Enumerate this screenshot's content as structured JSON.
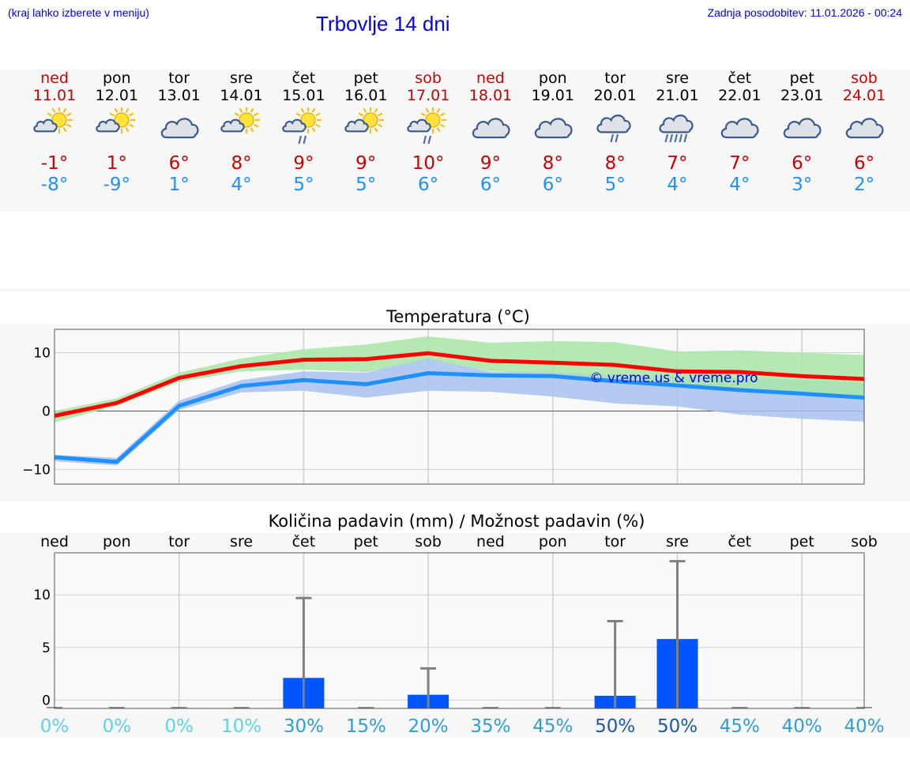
{
  "header": {
    "menu_hint": "(kraj lahko izberete v meniju)",
    "title": "Trbovlje 14 dni",
    "updated": "Zadnja posodobitev: 11.01.2026 - 00:24"
  },
  "forecast": [
    {
      "day": "ned",
      "date": "11.01",
      "icon": "partly-sunny-icon",
      "tmax": "-1°",
      "tmin": "-8°",
      "weekend": true
    },
    {
      "day": "pon",
      "date": "12.01",
      "icon": "partly-sunny-icon",
      "tmax": "1°",
      "tmin": "-9°",
      "weekend": false
    },
    {
      "day": "tor",
      "date": "13.01",
      "icon": "cloudy-icon",
      "tmax": "6°",
      "tmin": "1°",
      "weekend": false
    },
    {
      "day": "sre",
      "date": "14.01",
      "icon": "partly-sunny-icon",
      "tmax": "8°",
      "tmin": "4°",
      "weekend": false
    },
    {
      "day": "čet",
      "date": "15.01",
      "icon": "sun-cloud-rain-icon",
      "tmax": "9°",
      "tmin": "5°",
      "weekend": false
    },
    {
      "day": "pet",
      "date": "16.01",
      "icon": "partly-sunny-icon",
      "tmax": "9°",
      "tmin": "5°",
      "weekend": false
    },
    {
      "day": "sob",
      "date": "17.01",
      "icon": "sun-cloud-rain-icon",
      "tmax": "10°",
      "tmin": "6°",
      "weekend": true
    },
    {
      "day": "ned",
      "date": "18.01",
      "icon": "cloudy-icon",
      "tmax": "9°",
      "tmin": "6°",
      "weekend": true
    },
    {
      "day": "pon",
      "date": "19.01",
      "icon": "cloudy-icon",
      "tmax": "8°",
      "tmin": "6°",
      "weekend": false
    },
    {
      "day": "tor",
      "date": "20.01",
      "icon": "cloud-rain-icon",
      "tmax": "8°",
      "tmin": "5°",
      "weekend": false
    },
    {
      "day": "sre",
      "date": "21.01",
      "icon": "cloud-heavy-rain-icon",
      "tmax": "7°",
      "tmin": "4°",
      "weekend": false
    },
    {
      "day": "čet",
      "date": "22.01",
      "icon": "cloudy-icon",
      "tmax": "7°",
      "tmin": "4°",
      "weekend": false
    },
    {
      "day": "pet",
      "date": "23.01",
      "icon": "cloudy-icon",
      "tmax": "6°",
      "tmin": "3°",
      "weekend": false
    },
    {
      "day": "sob",
      "date": "24.01",
      "icon": "cloudy-icon",
      "tmax": "6°",
      "tmin": "2°",
      "weekend": true
    }
  ],
  "colors": {
    "max_line": "#ff0000",
    "min_line": "#1e90ff",
    "max_band": "#a8e6a8",
    "min_band": "#a9c2f0",
    "overlap_band": "#7cc4b0",
    "precip_bar": "#0055ff",
    "error_bar": "#808080"
  },
  "chart_data": [
    {
      "type": "line",
      "title": "Temperatura (°C)",
      "watermark": "© vreme.us & vreme.pro",
      "ylim": [
        -12.5,
        14
      ],
      "yticks": [
        -10,
        0,
        10
      ],
      "ytick_labels": [
        "−10",
        "0",
        "10"
      ],
      "x": [
        0,
        1,
        2,
        3,
        4,
        5,
        6,
        7,
        8,
        9,
        10,
        11,
        12,
        13
      ],
      "series": [
        {
          "name": "max",
          "values": [
            -0.8,
            1.4,
            5.7,
            7.7,
            8.8,
            8.9,
            9.9,
            8.6,
            8.3,
            7.9,
            6.8,
            6.7,
            6.0,
            5.5
          ],
          "band_low": [
            -1.9,
            0.9,
            5.0,
            6.8,
            7.1,
            6.7,
            8.9,
            6.8,
            6.5,
            5.6,
            4.5,
            3.6,
            2.7,
            1.9
          ],
          "band_high": [
            0,
            2.2,
            6.6,
            9.0,
            10.6,
            11.4,
            12.8,
            11.7,
            12.0,
            11.8,
            10.2,
            10.4,
            10.0,
            9.6
          ]
        },
        {
          "name": "min",
          "values": [
            -7.9,
            -8.7,
            0.9,
            4.3,
            5.3,
            4.6,
            6.5,
            6.1,
            6.0,
            5.1,
            4.4,
            3.6,
            3.0,
            2.3
          ],
          "band_low": [
            -8.6,
            -9.3,
            0.2,
            3.2,
            3.5,
            2.3,
            3.5,
            3.3,
            2.5,
            1.3,
            0.8,
            -0.6,
            -1.3,
            -1.8
          ],
          "band_high": [
            -7.5,
            -8.0,
            1.8,
            5.3,
            6.8,
            6.6,
            9.2,
            6.7,
            6.7,
            6.2,
            6.0,
            5.6,
            5.3,
            4.8
          ]
        }
      ]
    },
    {
      "type": "bar",
      "title": "Količina padavin (mm) / Možnost padavin (%)",
      "ylim": [
        -0.8,
        14
      ],
      "yticks": [
        0,
        5,
        10
      ],
      "ytick_labels": [
        "0",
        "5",
        "10"
      ],
      "categories": [
        "ned",
        "pon",
        "tor",
        "sre",
        "čet",
        "pet",
        "sob",
        "ned",
        "pon",
        "tor",
        "sre",
        "čet",
        "pet",
        "sob"
      ],
      "values": [
        0,
        0,
        0,
        0,
        2.1,
        0,
        0.5,
        0,
        0,
        0.4,
        5.8,
        0,
        0,
        0
      ],
      "error_max": [
        0,
        0,
        0,
        0,
        9.7,
        0,
        3.0,
        0,
        0,
        7.5,
        13.2,
        0,
        0,
        0
      ],
      "probability": [
        "0%",
        "0%",
        "0%",
        "10%",
        "30%",
        "15%",
        "20%",
        "35%",
        "45%",
        "50%",
        "50%",
        "45%",
        "40%",
        "40%"
      ],
      "probability_colors": [
        "#5bd3ea",
        "#5bd3ea",
        "#5bd3ea",
        "#5bd3ea",
        "#2f9ed6",
        "#2f9ed6",
        "#2f9ed6",
        "#2f9ed6",
        "#2f9ed6",
        "#1a5aa8",
        "#1a5aa8",
        "#2f9ed6",
        "#2f9ed6",
        "#2f9ed6"
      ]
    }
  ]
}
